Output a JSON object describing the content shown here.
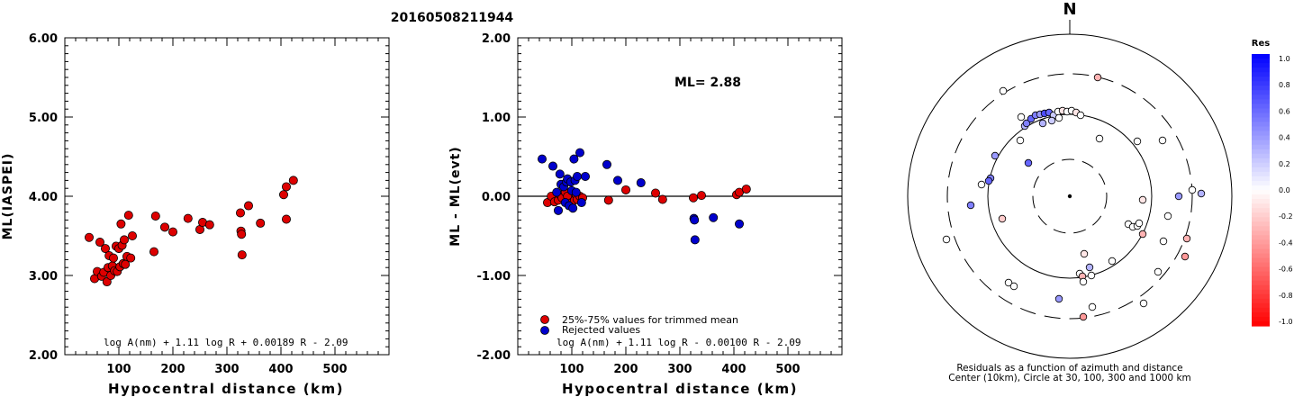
{
  "title": "20160508211944",
  "chart_data": [
    {
      "type": "scatter",
      "xlabel": "Hypocentral distance (km)",
      "ylabel": "ML(IASPEI)",
      "xlim": [
        0,
        600
      ],
      "ylim": [
        2.0,
        6.0
      ],
      "x_ticks": [
        "100",
        "200",
        "300",
        "400",
        "500"
      ],
      "y_ticks": [
        "2.00",
        "3.00",
        "4.00",
        "5.00",
        "6.00"
      ],
      "formula": "log A(nm) + 1.11 log R + 0.00189 R - 2.09",
      "series": [
        {
          "color": "#dd0000",
          "points": [
            [
              45,
              3.48
            ],
            [
              55,
              2.96
            ],
            [
              60,
              3.05
            ],
            [
              65,
              3.42
            ],
            [
              68,
              2.99
            ],
            [
              72,
              3.04
            ],
            [
              75,
              3.34
            ],
            [
              78,
              2.92
            ],
            [
              80,
              3.1
            ],
            [
              82,
              3.25
            ],
            [
              85,
              3.0
            ],
            [
              88,
              3.12
            ],
            [
              90,
              3.22
            ],
            [
              92,
              3.06
            ],
            [
              95,
              3.37
            ],
            [
              97,
              3.05
            ],
            [
              100,
              3.34
            ],
            [
              102,
              3.11
            ],
            [
              104,
              3.65
            ],
            [
              106,
              3.38
            ],
            [
              108,
              3.15
            ],
            [
              110,
              3.45
            ],
            [
              112,
              3.14
            ],
            [
              115,
              3.24
            ],
            [
              118,
              3.76
            ],
            [
              122,
              3.22
            ],
            [
              125,
              3.5
            ],
            [
              165,
              3.3
            ],
            [
              168,
              3.75
            ],
            [
              185,
              3.61
            ],
            [
              200,
              3.55
            ],
            [
              228,
              3.72
            ],
            [
              250,
              3.58
            ],
            [
              255,
              3.67
            ],
            [
              268,
              3.64
            ],
            [
              325,
              3.79
            ],
            [
              326,
              3.56
            ],
            [
              327,
              3.52
            ],
            [
              328,
              3.26
            ],
            [
              340,
              3.88
            ],
            [
              362,
              3.66
            ],
            [
              405,
              4.02
            ],
            [
              410,
              4.12
            ],
            [
              410,
              3.71
            ],
            [
              423,
              4.2
            ]
          ]
        }
      ]
    },
    {
      "type": "scatter",
      "xlabel": "Hypocentral distance (km)",
      "ylabel": "ML - ML(evt)",
      "xlim": [
        0,
        600
      ],
      "ylim": [
        -2.0,
        2.0
      ],
      "x_ticks": [
        "100",
        "200",
        "300",
        "400",
        "500"
      ],
      "y_ticks": [
        "-2.00",
        "-1.00",
        "0.00",
        "1.00",
        "2.00"
      ],
      "annotation": "ML= 2.88",
      "formula": "log A(nm) + 1.11 log R - 0.00100 R - 2.09",
      "legend": [
        "25%-75% values for trimmed mean",
        "Rejected values"
      ],
      "series": [
        {
          "name": "25%-75% values for trimmed mean",
          "color": "#dd0000",
          "points": [
            [
              55,
              -0.08
            ],
            [
              62,
              0.0
            ],
            [
              68,
              -0.07
            ],
            [
              75,
              -0.05
            ],
            [
              78,
              0.02
            ],
            [
              82,
              -0.02
            ],
            [
              88,
              0.05
            ],
            [
              92,
              0.0
            ],
            [
              95,
              -0.1
            ],
            [
              100,
              -0.08
            ],
            [
              105,
              -0.05
            ],
            [
              108,
              0.02
            ],
            [
              110,
              -0.04
            ],
            [
              115,
              0.0
            ],
            [
              120,
              -0.02
            ],
            [
              168,
              -0.05
            ],
            [
              200,
              0.08
            ],
            [
              255,
              0.04
            ],
            [
              268,
              -0.04
            ],
            [
              325,
              -0.02
            ],
            [
              340,
              0.01
            ],
            [
              405,
              0.02
            ],
            [
              410,
              0.05
            ],
            [
              423,
              0.09
            ]
          ]
        },
        {
          "name": "Rejected values",
          "color": "#0000cc",
          "points": [
            [
              45,
              0.47
            ],
            [
              65,
              0.38
            ],
            [
              72,
              0.05
            ],
            [
              75,
              -0.18
            ],
            [
              78,
              0.28
            ],
            [
              80,
              0.15
            ],
            [
              85,
              0.12
            ],
            [
              88,
              -0.08
            ],
            [
              90,
              0.18
            ],
            [
              92,
              0.22
            ],
            [
              95,
              -0.12
            ],
            [
              98,
              0.18
            ],
            [
              100,
              0.07
            ],
            [
              102,
              -0.15
            ],
            [
              104,
              0.47
            ],
            [
              106,
              0.2
            ],
            [
              108,
              0.05
            ],
            [
              110,
              0.25
            ],
            [
              115,
              0.55
            ],
            [
              118,
              -0.08
            ],
            [
              125,
              0.25
            ],
            [
              165,
              0.4
            ],
            [
              185,
              0.2
            ],
            [
              228,
              0.17
            ],
            [
              326,
              -0.28
            ],
            [
              327,
              -0.3
            ],
            [
              328,
              -0.55
            ],
            [
              362,
              -0.27
            ],
            [
              410,
              -0.35
            ]
          ]
        }
      ]
    }
  ],
  "polar": {
    "north_label": "N",
    "caption_line1": "Residuals as a function of azimuth and distance",
    "caption_line2": "Center (10km), Circle at 30, 100, 300 and 1000 km",
    "points": [
      [
        1219,
        86,
        -0.3
      ],
      [
        1114,
        101,
        0
      ],
      [
        1134,
        130,
        0
      ],
      [
        1138,
        140,
        0.3
      ],
      [
        1140,
        137,
        0.5
      ],
      [
        1145,
        132,
        0.6
      ],
      [
        1150,
        128,
        0.5
      ],
      [
        1155,
        127,
        0.4
      ],
      [
        1160,
        126,
        0.7
      ],
      [
        1165,
        125,
        0.6
      ],
      [
        1170,
        128,
        0.2
      ],
      [
        1175,
        124,
        0
      ],
      [
        1180,
        123,
        -0.1
      ],
      [
        1185,
        124,
        0
      ],
      [
        1190,
        123,
        0
      ],
      [
        1195,
        125,
        -0.1
      ],
      [
        1200,
        128,
        0
      ],
      [
        1158,
        137,
        0.3
      ],
      [
        1168,
        134,
        0.2
      ],
      [
        1176,
        131,
        0
      ],
      [
        1133,
        156,
        0
      ],
      [
        1221,
        154,
        0
      ],
      [
        1263,
        157,
        0
      ],
      [
        1291,
        156,
        0
      ],
      [
        1105,
        173,
        0.4
      ],
      [
        1142,
        181,
        0.6
      ],
      [
        1100,
        198,
        0.5
      ],
      [
        1098,
        201,
        0.6
      ],
      [
        1090,
        205,
        0
      ],
      [
        1269,
        222,
        -0.1
      ],
      [
        1309,
        218,
        0.4
      ],
      [
        1324,
        211,
        0
      ],
      [
        1334,
        215,
        0.3
      ],
      [
        1078,
        228,
        0.5
      ],
      [
        1297,
        240,
        0
      ],
      [
        1113,
        243,
        -0.2
      ],
      [
        1253,
        249,
        0
      ],
      [
        1258,
        252,
        0
      ],
      [
        1263,
        251,
        0
      ],
      [
        1265,
        248,
        0
      ],
      [
        1269,
        260,
        -0.3
      ],
      [
        1292,
        268,
        0
      ],
      [
        1051,
        266,
        0
      ],
      [
        1318,
        265,
        -0.3
      ],
      [
        1316,
        285,
        -0.4
      ],
      [
        1204,
        282,
        -0.1
      ],
      [
        1210,
        297,
        0.3
      ],
      [
        1199,
        304,
        0
      ],
      [
        1235,
        290,
        0
      ],
      [
        1286,
        302,
        0
      ],
      [
        1120,
        314,
        0
      ],
      [
        1126,
        318,
        0
      ],
      [
        1202,
        307,
        -0.3
      ],
      [
        1212,
        306,
        0
      ],
      [
        1176,
        332,
        0.4
      ],
      [
        1203,
        313,
        0
      ],
      [
        1213,
        341,
        0
      ],
      [
        1270,
        337,
        0
      ],
      [
        1203,
        352,
        -0.4
      ]
    ]
  },
  "colorbar": {
    "title": "Res",
    "ticks": [
      "1.0",
      "0.8",
      "0.6",
      "0.4",
      "0.2",
      "0.0",
      "-0.2",
      "-0.4",
      "-0.6",
      "-0.8",
      "-1.0"
    ]
  }
}
